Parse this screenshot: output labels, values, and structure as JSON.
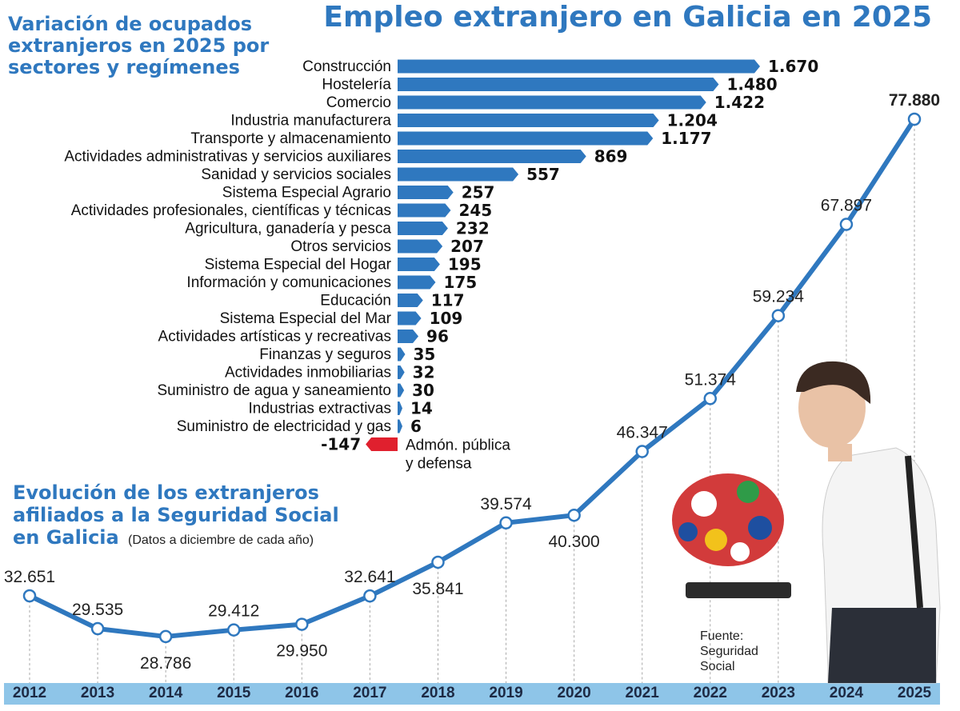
{
  "title": "Empleo extranjero en Galicia en 2025",
  "source": [
    "Fuente:",
    "Seguridad",
    "Social"
  ],
  "colors": {
    "accent": "#2f78bf",
    "negative": "#e0202e",
    "axis_band": "#8ec5e8",
    "text": "#111111"
  },
  "chart_data": [
    {
      "type": "bar",
      "orientation": "horizontal",
      "title": [
        "Variación de ocupados",
        "extranjeros en 2025 por",
        "sectores y regímenes"
      ],
      "categories": [
        "Construcción",
        "Hostelería",
        "Comercio",
        "Industria manufacturera",
        "Transporte y almacenamiento",
        "Actividades administrativas y servicios auxiliares",
        "Sanidad y servicios sociales",
        "Sistema Especial Agrario",
        "Actividades profesionales, científicas y técnicas",
        "Agricultura, ganadería y pesca",
        "Otros servicios",
        "Sistema Especial del Hogar",
        "Información y comunicaciones",
        "Educación",
        "Sistema Especial del Mar",
        "Actividades artísticas y recreativas",
        "Finanzas y seguros",
        "Actividades inmobiliarias",
        "Suministro de agua y saneamiento",
        "Industrias extractivas",
        "Suministro de electricidad y gas",
        "Admón. pública y defensa"
      ],
      "values": [
        1670,
        1480,
        1422,
        1204,
        1177,
        869,
        557,
        257,
        245,
        232,
        207,
        195,
        175,
        117,
        109,
        96,
        35,
        32,
        30,
        14,
        6,
        -147
      ],
      "value_labels": [
        "1.670",
        "1.480",
        "1.422",
        "1.204",
        "1.177",
        "869",
        "557",
        "257",
        "245",
        "232",
        "207",
        "195",
        "175",
        "117",
        "109",
        "96",
        "35",
        "32",
        "30",
        "14",
        "6",
        "-147"
      ],
      "negative_label_lines": [
        "Admón. pública",
        "y defensa"
      ]
    },
    {
      "type": "line",
      "title": [
        "Evolución de los extranjeros",
        "afiliados a la Seguridad Social",
        "en Galicia"
      ],
      "subtitle": "(Datos a diciembre de cada año)",
      "x": [
        "2012",
        "2013",
        "2014",
        "2015",
        "2016",
        "2017",
        "2018",
        "2019",
        "2020",
        "2021",
        "2022",
        "2023",
        "2024",
        "2025"
      ],
      "values": [
        32651,
        29535,
        28786,
        29412,
        29950,
        32641,
        35841,
        39574,
        40300,
        46347,
        51374,
        59234,
        67897,
        77880
      ],
      "value_labels": [
        "32.651",
        "29.535",
        "28.786",
        "29.412",
        "29.950",
        "32.641",
        "35.841",
        "39.574",
        "40.300",
        "46.347",
        "51.374",
        "59.234",
        "67.897",
        "77.880"
      ]
    }
  ]
}
